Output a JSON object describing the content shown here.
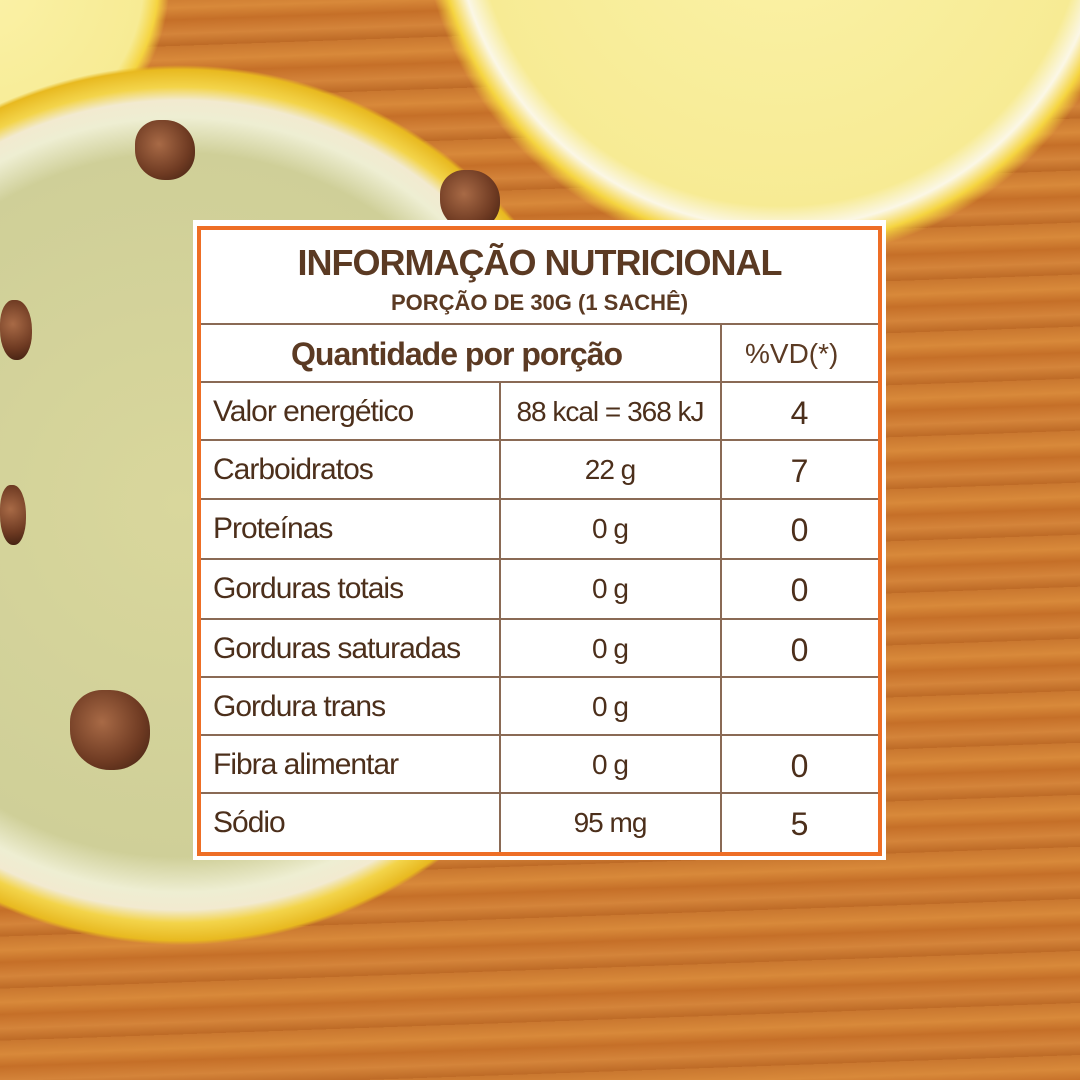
{
  "label": {
    "title": "INFORMAÇÃO NUTRICIONAL",
    "subtitle": "PORÇÃO DE 30G (1 SACHÊ)",
    "header": {
      "quantity": "Quantidade por porção",
      "dv": "%VD(*)"
    },
    "rows": [
      {
        "name": "Valor energético",
        "amount": "88 kcal = 368 kJ",
        "dv": "4"
      },
      {
        "name": "Carboidratos",
        "amount": "22 g",
        "dv": "7"
      },
      {
        "name": "Proteínas",
        "amount": "0 g",
        "dv": "0"
      },
      {
        "name": "Gorduras totais",
        "amount": "0 g",
        "dv": "0"
      },
      {
        "name": "Gorduras saturadas",
        "amount": "0 g",
        "dv": "0"
      },
      {
        "name": "Gordura trans",
        "amount": "0 g",
        "dv": ""
      },
      {
        "name": "Fibra alimentar",
        "amount": "0 g",
        "dv": "0"
      },
      {
        "name": "Sódio",
        "amount": "95 mg",
        "dv": "5"
      }
    ],
    "colors": {
      "border": "#ee6e25",
      "text": "#5b3a23"
    }
  }
}
